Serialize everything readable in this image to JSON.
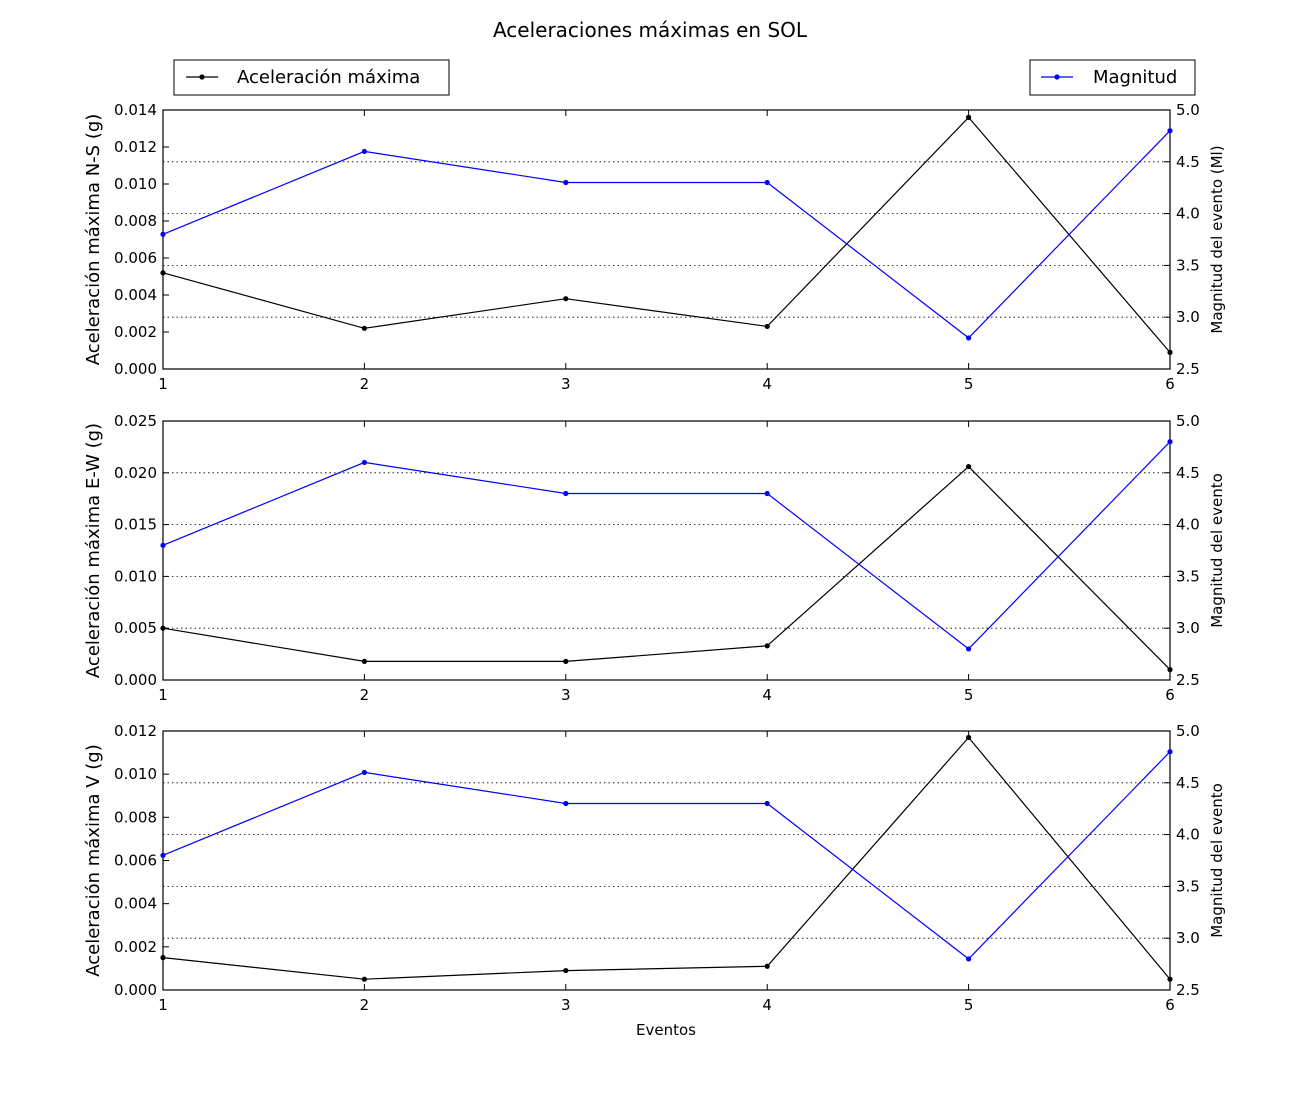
{
  "figure": {
    "title": "Aceleraciones máximas en SOL",
    "xlabel": "Eventos",
    "legend": {
      "left_label": "Aceleración máxima",
      "right_label": "Magnitud",
      "left_placement": "top-left",
      "right_placement": "top-right"
    }
  },
  "colors": {
    "acceleration": "#000000",
    "magnitude": "#0000ff",
    "grid": "#000000"
  },
  "chart_data": [
    {
      "type": "line",
      "x": [
        1,
        2,
        3,
        4,
        5,
        6
      ],
      "xlim": [
        1,
        6
      ],
      "x_ticks": [
        "1",
        "2",
        "3",
        "4",
        "5",
        "6"
      ],
      "ylabel": "Aceleración máxima N-S (g)",
      "ylim": [
        0,
        0.014
      ],
      "y_ticks": [
        "0.000",
        "0.002",
        "0.004",
        "0.006",
        "0.008",
        "0.010",
        "0.012",
        "0.014"
      ],
      "ylabel2": "Magnitud del evento (Ml)",
      "ylim2": [
        2.5,
        5.0
      ],
      "y2_ticks": [
        "2.5",
        "3.0",
        "3.5",
        "4.0",
        "4.5",
        "5.0"
      ],
      "grid": "dotted, horizontal, right axis",
      "series": [
        {
          "name": "Aceleración máxima",
          "axis": "left",
          "values": [
            0.0052,
            0.0022,
            0.0038,
            0.0023,
            0.0136,
            0.0009
          ]
        },
        {
          "name": "Magnitud",
          "axis": "right",
          "values": [
            3.8,
            4.6,
            4.3,
            4.3,
            2.8,
            4.8
          ]
        }
      ]
    },
    {
      "type": "line",
      "x": [
        1,
        2,
        3,
        4,
        5,
        6
      ],
      "xlim": [
        1,
        6
      ],
      "x_ticks": [
        "1",
        "2",
        "3",
        "4",
        "5",
        "6"
      ],
      "ylabel": "Aceleración máxima E-W (g)",
      "ylim": [
        0,
        0.025
      ],
      "y_ticks": [
        "0.000",
        "0.005",
        "0.010",
        "0.015",
        "0.020",
        "0.025"
      ],
      "ylabel2": "Magnitud del evento",
      "ylim2": [
        2.5,
        5.0
      ],
      "y2_ticks": [
        "2.5",
        "3.0",
        "3.5",
        "4.0",
        "4.5",
        "5.0"
      ],
      "grid": "dotted, horizontal, right axis",
      "series": [
        {
          "name": "Aceleración máxima",
          "axis": "left",
          "values": [
            0.005,
            0.0018,
            0.0018,
            0.0033,
            0.0206,
            0.001
          ]
        },
        {
          "name": "Magnitud",
          "axis": "right",
          "values": [
            3.8,
            4.6,
            4.3,
            4.3,
            2.8,
            4.8
          ]
        }
      ]
    },
    {
      "type": "line",
      "x": [
        1,
        2,
        3,
        4,
        5,
        6
      ],
      "xlim": [
        1,
        6
      ],
      "x_ticks": [
        "1",
        "2",
        "3",
        "4",
        "5",
        "6"
      ],
      "xlabel": "Eventos",
      "ylabel": "Aceleración máxima V (g)",
      "ylim": [
        0,
        0.012
      ],
      "y_ticks": [
        "0.000",
        "0.002",
        "0.004",
        "0.006",
        "0.008",
        "0.010",
        "0.012"
      ],
      "ylabel2": "Magnitud del evento",
      "ylim2": [
        2.5,
        5.0
      ],
      "y2_ticks": [
        "2.5",
        "3.0",
        "3.5",
        "4.0",
        "4.5",
        "5.0"
      ],
      "grid": "dotted, horizontal, right axis",
      "series": [
        {
          "name": "Aceleración máxima",
          "axis": "left",
          "values": [
            0.0015,
            0.0005,
            0.0009,
            0.0011,
            0.0117,
            0.0005
          ]
        },
        {
          "name": "Magnitud",
          "axis": "right",
          "values": [
            3.8,
            4.6,
            4.3,
            4.3,
            2.8,
            4.8
          ]
        }
      ]
    }
  ]
}
